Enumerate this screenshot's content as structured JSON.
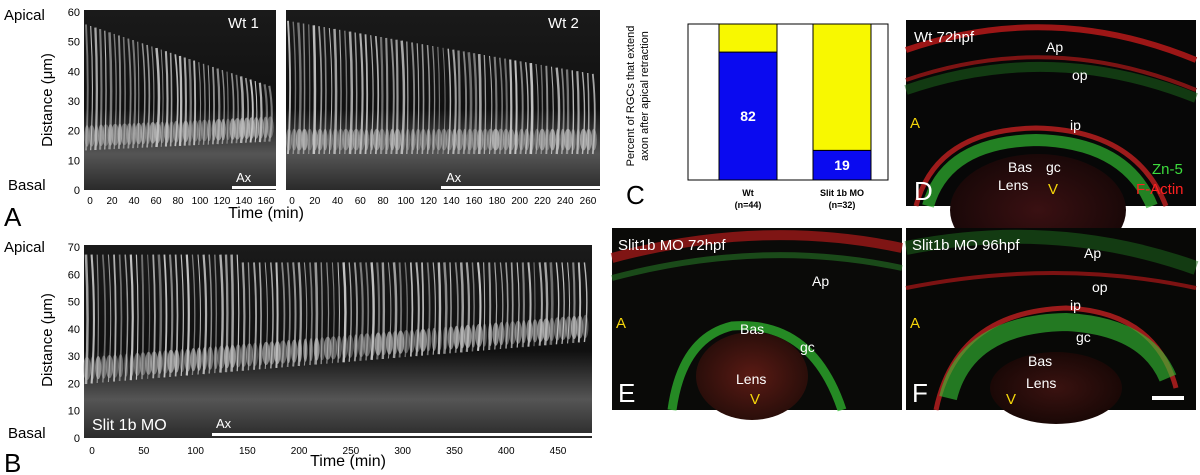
{
  "panel_A": {
    "letter": "A",
    "apical_label": "Apical",
    "basal_label": "Basal",
    "ylabel": "Distance (μm)",
    "xlabel": "Time (min)",
    "y_ticks": [
      "60",
      "50",
      "40",
      "30",
      "20",
      "10",
      "0"
    ],
    "wt1": {
      "label": "Wt 1",
      "ax_label": "Ax",
      "x_ticks": [
        "0",
        "20",
        "40",
        "60",
        "80",
        "100",
        "120",
        "140",
        "160"
      ]
    },
    "wt2": {
      "label": "Wt 2",
      "ax_label": "Ax",
      "x_ticks": [
        "0",
        "20",
        "40",
        "60",
        "80",
        "100",
        "120",
        "140",
        "160",
        "180",
        "200",
        "220",
        "240",
        "260"
      ]
    }
  },
  "panel_B": {
    "letter": "B",
    "apical_label": "Apical",
    "basal_label": "Basal",
    "ylabel": "Distance (μm)",
    "xlabel": "Time (min)",
    "y_ticks": [
      "70",
      "60",
      "50",
      "40",
      "30",
      "20",
      "10",
      "0"
    ],
    "x_ticks": [
      "0",
      "50",
      "100",
      "150",
      "200",
      "250",
      "300",
      "350",
      "400",
      "450"
    ],
    "label": "Slit 1b MO",
    "ax_label": "Ax"
  },
  "panel_C": {
    "letter": "C",
    "ylabel_line1": "Percent of RGCs that extend",
    "ylabel_line2": "axon after apical retraction"
  },
  "chart_data": {
    "type": "bar",
    "categories": [
      "Wt",
      "Slit 1b MO"
    ],
    "category_sublabels": [
      "(n=44)",
      "(n=32)"
    ],
    "series": [
      {
        "values": [
          82,
          19
        ],
        "color": "#0a0af0"
      },
      {
        "values": [
          18,
          81
        ],
        "color": "#f8f800"
      }
    ],
    "data_labels": [
      "82",
      "19"
    ],
    "stacked": true,
    "ylim": [
      0,
      100
    ]
  },
  "panel_D": {
    "letter": "D",
    "title": "Wt 72hpf",
    "labels": {
      "ap": "Ap",
      "op": "op",
      "ip": "ip",
      "gc": "gc",
      "bas": "Bas",
      "lens": "Lens",
      "a": "A",
      "v": "V"
    },
    "legend_green": "Zn-5",
    "legend_red": "F-Actin"
  },
  "panel_E": {
    "letter": "E",
    "title": "Slit1b MO 72hpf",
    "labels": {
      "ap": "Ap",
      "bas": "Bas",
      "gc": "gc",
      "lens": "Lens",
      "a": "A",
      "v": "V"
    }
  },
  "panel_F": {
    "letter": "F",
    "title": "Slit1b MO 96hpf",
    "labels": {
      "ap": "Ap",
      "op": "op",
      "ip": "ip",
      "gc": "gc",
      "bas": "Bas",
      "lens": "Lens",
      "a": "A",
      "v": "V"
    }
  },
  "colors": {
    "green_stain": "#3ddc3d",
    "red_stain": "#ff2020",
    "annotation_yellow": "#f5d60a"
  }
}
